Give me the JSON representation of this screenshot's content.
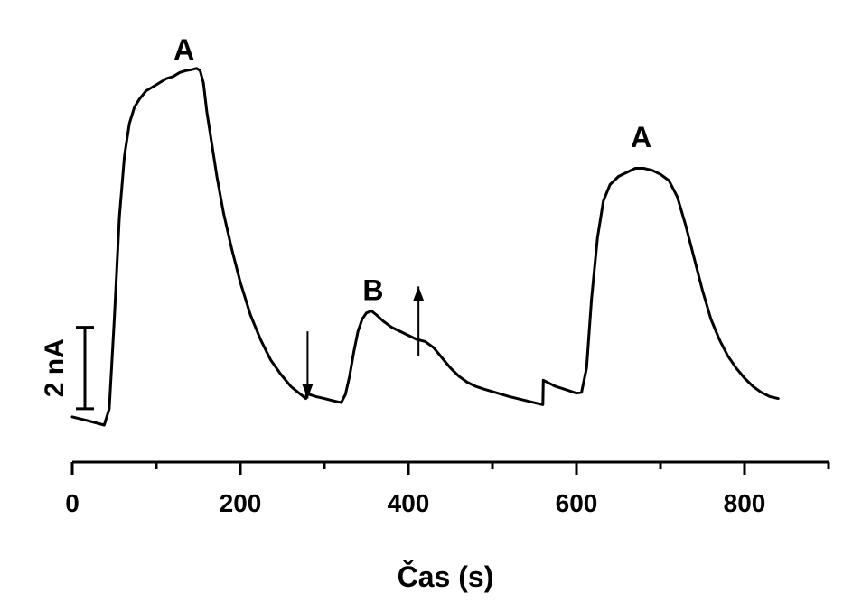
{
  "chart_data": {
    "type": "line",
    "xlabel": "Čas (s)",
    "ylabel": "",
    "xlim": [
      0,
      900
    ],
    "x_ticks": [
      0,
      200,
      400,
      600,
      800
    ],
    "x_minor_ticks": [
      100,
      300,
      500,
      700,
      900
    ],
    "y_units": "nA",
    "ylim": [
      -0.3,
      9.0
    ],
    "grid": false,
    "legend": "none",
    "scale_bar": {
      "label": "2 nA",
      "value": 2,
      "y_from": 0.3
    },
    "annotations": [
      {
        "text": "A",
        "x": 133,
        "y": 8.6
      },
      {
        "text": "B",
        "x": 358,
        "y": 2.7
      },
      {
        "text": "A",
        "x": 677,
        "y": 6.45
      }
    ],
    "arrows": [
      {
        "x": 280,
        "direction": "down",
        "y_from": 2.2,
        "y_to": 0.55
      },
      {
        "x": 412,
        "direction": "up",
        "y_from": 1.6,
        "y_to": 3.3
      }
    ],
    "series": [
      {
        "x": [
          0,
          20,
          38,
          44,
          50,
          56,
          62,
          68,
          74,
          80,
          88,
          96,
          104,
          112,
          120,
          128,
          136,
          142,
          148,
          152,
          156,
          160,
          166,
          172,
          180,
          190,
          200,
          212,
          224,
          236,
          248,
          260,
          270,
          278,
          280,
          282,
          290,
          300,
          310,
          320,
          325,
          330,
          335,
          340,
          345,
          350,
          356,
          362,
          370,
          380,
          390,
          400,
          410,
          420,
          430,
          440,
          450,
          460,
          470,
          480,
          490,
          500,
          520,
          540,
          560,
          560.5,
          575,
          590,
          600,
          606,
          612,
          618,
          625,
          632,
          640,
          650,
          660,
          670,
          680,
          690,
          700,
          710,
          720,
          730,
          740,
          750,
          760,
          770,
          780,
          790,
          800,
          810,
          820,
          830,
          840
        ],
        "values": [
          0.1,
          0.0,
          -0.1,
          0.3,
          2.5,
          5.0,
          6.5,
          7.3,
          7.7,
          7.9,
          8.1,
          8.2,
          8.3,
          8.4,
          8.45,
          8.55,
          8.6,
          8.62,
          8.65,
          8.6,
          8.3,
          7.6,
          6.8,
          6.0,
          5.1,
          4.2,
          3.4,
          2.6,
          2.0,
          1.5,
          1.15,
          0.85,
          0.68,
          0.55,
          0.78,
          0.65,
          0.6,
          0.55,
          0.5,
          0.45,
          0.65,
          1.1,
          1.7,
          2.2,
          2.5,
          2.65,
          2.7,
          2.6,
          2.45,
          2.3,
          2.2,
          2.1,
          2.0,
          1.95,
          1.8,
          1.55,
          1.3,
          1.1,
          0.95,
          0.85,
          0.78,
          0.72,
          0.6,
          0.5,
          0.4,
          1.0,
          0.85,
          0.75,
          0.68,
          0.7,
          1.3,
          3.0,
          4.5,
          5.4,
          5.8,
          6.0,
          6.1,
          6.2,
          6.2,
          6.15,
          6.05,
          5.9,
          5.5,
          4.8,
          4.0,
          3.2,
          2.5,
          2.0,
          1.6,
          1.3,
          1.05,
          0.85,
          0.7,
          0.6,
          0.55
        ]
      }
    ]
  }
}
